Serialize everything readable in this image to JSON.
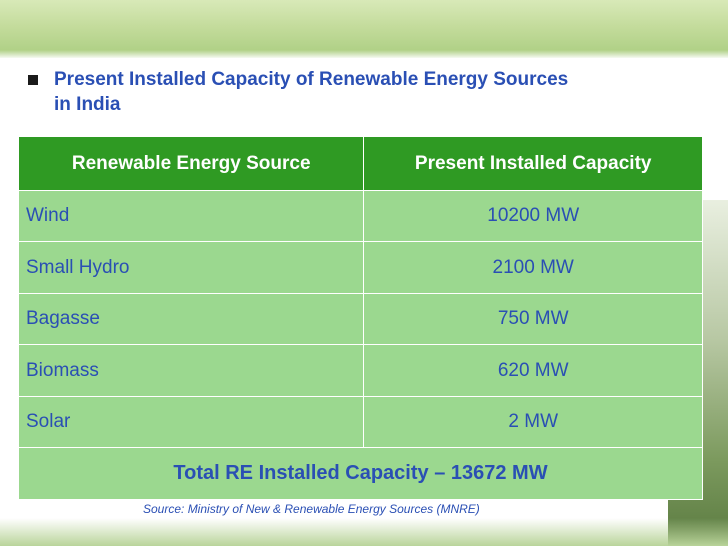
{
  "heading": {
    "line1": "Present Installed Capacity of Renewable Energy Sources",
    "line2": "in India"
  },
  "table": {
    "headers": [
      "Renewable Energy Source",
      "Present Installed Capacity"
    ],
    "rows": [
      {
        "source": "Wind",
        "capacity": "10200 MW"
      },
      {
        "source": "Small Hydro",
        "capacity": "2100 MW"
      },
      {
        "source": "Bagasse",
        "capacity": "750 MW"
      },
      {
        "source": "Biomass",
        "capacity": "620 MW"
      },
      {
        "source": "Solar",
        "capacity": "2 MW"
      }
    ],
    "total": "Total RE Installed Capacity – 13672 MW"
  },
  "source_note": "Source: Ministry of New & Renewable Energy Sources (MNRE)",
  "colors": {
    "header_bg": "#2f9a23",
    "cell_bg": "#9bd88f",
    "text_blue": "#2a4fb4"
  }
}
